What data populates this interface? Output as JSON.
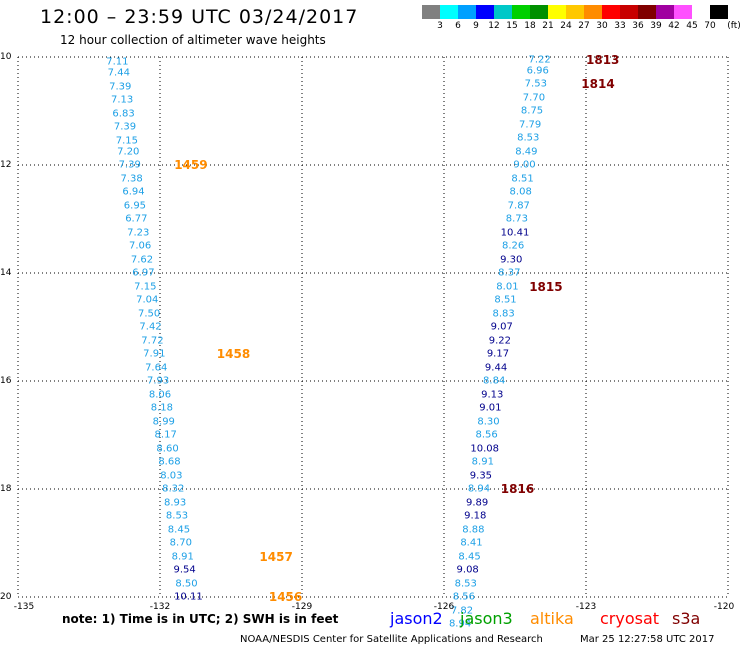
{
  "title": "12:00 – 23:59 UTC 03/24/2017",
  "subtitle": "12 hour collection of altimeter wave heights",
  "legend": {
    "colors": [
      "#808080",
      "#00ffff",
      "#00a0ff",
      "#0000ff",
      "#00c8c8",
      "#00d000",
      "#009000",
      "#ffff00",
      "#ffc800",
      "#ff8c00",
      "#ff0000",
      "#c80000",
      "#800000",
      "#a000a0",
      "#ff50ff",
      "#ffffff",
      "#000000"
    ],
    "labels": [
      "3",
      "6",
      "9",
      "12",
      "15",
      "18",
      "21",
      "24",
      "27",
      "30",
      "33",
      "36",
      "39",
      "42",
      "45",
      "70",
      "(ft)"
    ]
  },
  "axes": {
    "x_ticks": [
      "-135",
      "-132",
      "-129",
      "-126",
      "-123",
      "-120"
    ],
    "x_values": [
      -135,
      -132,
      -129,
      -126,
      -123,
      -120
    ],
    "y_ticks": [
      "10",
      "12",
      "14",
      "16",
      "18",
      "20"
    ],
    "y_values": [
      10,
      12,
      14,
      16,
      18,
      20
    ],
    "xlim": [
      -135,
      -120
    ],
    "ylim": [
      10,
      20
    ]
  },
  "colors": {
    "light_blue": "#1ea0e6",
    "dark_blue": "#00008c",
    "orange": "#ff8c00",
    "maroon": "#800000",
    "grid": "#000000"
  },
  "tracks": [
    {
      "name": "track-1",
      "points": [
        {
          "lon": -132.9,
          "lat": 10.1,
          "v": "7.11",
          "c": "light_blue"
        },
        {
          "lon": -132.87,
          "lat": 10.3,
          "v": "7.44",
          "c": "light_blue"
        },
        {
          "lon": -132.84,
          "lat": 10.55,
          "v": "7.39",
          "c": "light_blue"
        },
        {
          "lon": -132.8,
          "lat": 10.8,
          "v": "7.13",
          "c": "light_blue"
        },
        {
          "lon": -132.77,
          "lat": 11.05,
          "v": "6.83",
          "c": "light_blue"
        },
        {
          "lon": -132.74,
          "lat": 11.3,
          "v": "7.39",
          "c": "light_blue"
        },
        {
          "lon": -132.7,
          "lat": 11.55,
          "v": "7.15",
          "c": "light_blue"
        },
        {
          "lon": -132.67,
          "lat": 11.75,
          "v": "7.20",
          "c": "light_blue"
        },
        {
          "lon": -132.64,
          "lat": 12.0,
          "v": "7.39",
          "c": "light_blue"
        },
        {
          "lon": -132.6,
          "lat": 12.25,
          "v": "7.38",
          "c": "light_blue"
        },
        {
          "lon": -132.56,
          "lat": 12.5,
          "v": "6.94",
          "c": "light_blue"
        },
        {
          "lon": -132.53,
          "lat": 12.75,
          "v": "6.95",
          "c": "light_blue"
        },
        {
          "lon": -132.5,
          "lat": 13.0,
          "v": "6.77",
          "c": "light_blue"
        },
        {
          "lon": -132.46,
          "lat": 13.25,
          "v": "7.23",
          "c": "light_blue"
        },
        {
          "lon": -132.42,
          "lat": 13.5,
          "v": "7.06",
          "c": "light_blue"
        },
        {
          "lon": -132.38,
          "lat": 13.75,
          "v": "7.62",
          "c": "light_blue"
        },
        {
          "lon": -132.35,
          "lat": 14.0,
          "v": "6.97",
          "c": "light_blue"
        },
        {
          "lon": -132.31,
          "lat": 14.25,
          "v": "7.15",
          "c": "light_blue"
        },
        {
          "lon": -132.27,
          "lat": 14.5,
          "v": "7.04",
          "c": "light_blue"
        },
        {
          "lon": -132.23,
          "lat": 14.75,
          "v": "7.50",
          "c": "light_blue"
        },
        {
          "lon": -132.2,
          "lat": 15.0,
          "v": "7.42",
          "c": "light_blue"
        },
        {
          "lon": -132.16,
          "lat": 15.25,
          "v": "7.72",
          "c": "light_blue"
        },
        {
          "lon": -132.12,
          "lat": 15.5,
          "v": "7.91",
          "c": "light_blue"
        },
        {
          "lon": -132.08,
          "lat": 15.75,
          "v": "7.64",
          "c": "light_blue"
        },
        {
          "lon": -132.04,
          "lat": 16.0,
          "v": "7.93",
          "c": "light_blue"
        },
        {
          "lon": -132.0,
          "lat": 16.25,
          "v": "8.06",
          "c": "light_blue"
        },
        {
          "lon": -131.96,
          "lat": 16.5,
          "v": "8.18",
          "c": "light_blue"
        },
        {
          "lon": -131.92,
          "lat": 16.75,
          "v": "8.99",
          "c": "light_blue"
        },
        {
          "lon": -131.88,
          "lat": 17.0,
          "v": "8.17",
          "c": "light_blue"
        },
        {
          "lon": -131.84,
          "lat": 17.25,
          "v": "8.60",
          "c": "light_blue"
        },
        {
          "lon": -131.8,
          "lat": 17.5,
          "v": "8.68",
          "c": "light_blue"
        },
        {
          "lon": -131.76,
          "lat": 17.75,
          "v": "8.03",
          "c": "light_blue"
        },
        {
          "lon": -131.72,
          "lat": 18.0,
          "v": "8.32",
          "c": "light_blue"
        },
        {
          "lon": -131.68,
          "lat": 18.25,
          "v": "8.93",
          "c": "light_blue"
        },
        {
          "lon": -131.64,
          "lat": 18.5,
          "v": "8.53",
          "c": "light_blue"
        },
        {
          "lon": -131.6,
          "lat": 18.75,
          "v": "8.45",
          "c": "light_blue"
        },
        {
          "lon": -131.56,
          "lat": 19.0,
          "v": "8.70",
          "c": "light_blue"
        },
        {
          "lon": -131.52,
          "lat": 19.25,
          "v": "8.91",
          "c": "light_blue"
        },
        {
          "lon": -131.48,
          "lat": 19.5,
          "v": "9.54",
          "c": "dark_blue"
        },
        {
          "lon": -131.44,
          "lat": 19.75,
          "v": "8.50",
          "c": "light_blue"
        },
        {
          "lon": -131.4,
          "lat": 20.0,
          "v": "10.11",
          "c": "dark_blue"
        }
      ]
    },
    {
      "name": "track-2",
      "points": [
        {
          "lon": -123.98,
          "lat": 10.05,
          "v": "7.22",
          "c": "light_blue"
        },
        {
          "lon": -124.02,
          "lat": 10.25,
          "v": "6.96",
          "c": "light_blue"
        },
        {
          "lon": -124.06,
          "lat": 10.5,
          "v": "7.53",
          "c": "light_blue"
        },
        {
          "lon": -124.1,
          "lat": 10.75,
          "v": "7.70",
          "c": "light_blue"
        },
        {
          "lon": -124.14,
          "lat": 11.0,
          "v": "8.75",
          "c": "light_blue"
        },
        {
          "lon": -124.18,
          "lat": 11.25,
          "v": "7.79",
          "c": "light_blue"
        },
        {
          "lon": -124.22,
          "lat": 11.5,
          "v": "8.53",
          "c": "light_blue"
        },
        {
          "lon": -124.26,
          "lat": 11.75,
          "v": "8.49",
          "c": "light_blue"
        },
        {
          "lon": -124.3,
          "lat": 12.0,
          "v": "9.00",
          "c": "light_blue"
        },
        {
          "lon": -124.34,
          "lat": 12.25,
          "v": "8.51",
          "c": "light_blue"
        },
        {
          "lon": -124.38,
          "lat": 12.5,
          "v": "8.08",
          "c": "light_blue"
        },
        {
          "lon": -124.42,
          "lat": 12.75,
          "v": "7.87",
          "c": "light_blue"
        },
        {
          "lon": -124.46,
          "lat": 13.0,
          "v": "8.73",
          "c": "light_blue"
        },
        {
          "lon": -124.5,
          "lat": 13.25,
          "v": "10.41",
          "c": "dark_blue"
        },
        {
          "lon": -124.54,
          "lat": 13.5,
          "v": "8.26",
          "c": "light_blue"
        },
        {
          "lon": -124.58,
          "lat": 13.75,
          "v": "9.30",
          "c": "dark_blue"
        },
        {
          "lon": -124.62,
          "lat": 14.0,
          "v": "8.37",
          "c": "light_blue"
        },
        {
          "lon": -124.66,
          "lat": 14.25,
          "v": "8.01",
          "c": "light_blue"
        },
        {
          "lon": -124.7,
          "lat": 14.5,
          "v": "8.51",
          "c": "light_blue"
        },
        {
          "lon": -124.74,
          "lat": 14.75,
          "v": "8.83",
          "c": "light_blue"
        },
        {
          "lon": -124.78,
          "lat": 15.0,
          "v": "9.07",
          "c": "dark_blue"
        },
        {
          "lon": -124.82,
          "lat": 15.25,
          "v": "9.22",
          "c": "dark_blue"
        },
        {
          "lon": -124.86,
          "lat": 15.5,
          "v": "9.17",
          "c": "dark_blue"
        },
        {
          "lon": -124.9,
          "lat": 15.75,
          "v": "9.44",
          "c": "dark_blue"
        },
        {
          "lon": -124.94,
          "lat": 16.0,
          "v": "8.84",
          "c": "light_blue"
        },
        {
          "lon": -124.98,
          "lat": 16.25,
          "v": "9.13",
          "c": "dark_blue"
        },
        {
          "lon": -125.02,
          "lat": 16.5,
          "v": "9.01",
          "c": "dark_blue"
        },
        {
          "lon": -125.06,
          "lat": 16.75,
          "v": "8.30",
          "c": "light_blue"
        },
        {
          "lon": -125.1,
          "lat": 17.0,
          "v": "8.56",
          "c": "light_blue"
        },
        {
          "lon": -125.14,
          "lat": 17.25,
          "v": "10.08",
          "c": "dark_blue"
        },
        {
          "lon": -125.18,
          "lat": 17.5,
          "v": "8.91",
          "c": "light_blue"
        },
        {
          "lon": -125.22,
          "lat": 17.75,
          "v": "9.35",
          "c": "dark_blue"
        },
        {
          "lon": -125.26,
          "lat": 18.0,
          "v": "8.94",
          "c": "light_blue"
        },
        {
          "lon": -125.3,
          "lat": 18.25,
          "v": "9.89",
          "c": "dark_blue"
        },
        {
          "lon": -125.34,
          "lat": 18.5,
          "v": "9.18",
          "c": "dark_blue"
        },
        {
          "lon": -125.38,
          "lat": 18.75,
          "v": "8.88",
          "c": "light_blue"
        },
        {
          "lon": -125.42,
          "lat": 19.0,
          "v": "8.41",
          "c": "light_blue"
        },
        {
          "lon": -125.46,
          "lat": 19.25,
          "v": "8.45",
          "c": "light_blue"
        },
        {
          "lon": -125.5,
          "lat": 19.5,
          "v": "9.08",
          "c": "dark_blue"
        },
        {
          "lon": -125.54,
          "lat": 19.75,
          "v": "8.53",
          "c": "light_blue"
        },
        {
          "lon": -125.58,
          "lat": 20.0,
          "v": "8.56",
          "c": "light_blue"
        },
        {
          "lon": -125.62,
          "lat": 20.25,
          "v": "7.82",
          "c": "light_blue"
        },
        {
          "lon": -125.66,
          "lat": 20.5,
          "v": "8.94",
          "c": "light_blue"
        }
      ]
    }
  ],
  "passes": [
    {
      "text": "1459",
      "lon": -131.7,
      "lat": 12.0,
      "c": "orange"
    },
    {
      "text": "1458",
      "lon": -130.8,
      "lat": 15.5,
      "c": "orange"
    },
    {
      "text": "1457",
      "lon": -129.9,
      "lat": 19.25,
      "c": "orange"
    },
    {
      "text": "1456",
      "lon": -129.7,
      "lat": 20.0,
      "c": "orange"
    },
    {
      "text": "1813",
      "lon": -123.0,
      "lat": 10.05,
      "c": "maroon"
    },
    {
      "text": "1814",
      "lon": -123.1,
      "lat": 10.5,
      "c": "maroon"
    },
    {
      "text": "1815",
      "lon": -124.2,
      "lat": 14.25,
      "c": "maroon"
    },
    {
      "text": "1816",
      "lon": -124.8,
      "lat": 18.0,
      "c": "maroon"
    }
  ],
  "note": "note: 1) Time is in UTC; 2) SWH is in feet",
  "satellites": [
    {
      "name": "jason2",
      "color": "#0000ff"
    },
    {
      "name": "jason3",
      "color": "#00a000"
    },
    {
      "name": "altika",
      "color": "#ff8c00"
    },
    {
      "name": "cryosat",
      "color": "#ff0000"
    },
    {
      "name": "s3a",
      "color": "#800000"
    }
  ],
  "credit": "NOAA/NESDIS Center for Satellite Applications and Research",
  "timestamp": "Mar 25 12:27:58 UTC 2017"
}
